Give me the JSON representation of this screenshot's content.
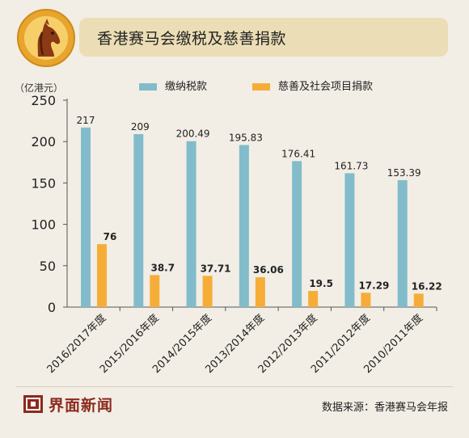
{
  "header": {
    "title": "香港赛马会缴税及慈善捐款",
    "badge_icon": "horse-head-icon"
  },
  "colors": {
    "background": "#f2eee6",
    "title_bar": "#ebddb5",
    "tax_series": "#82bccb",
    "donation_series": "#f6ad37",
    "brand": "#8b2a1c"
  },
  "chart_data": {
    "type": "bar",
    "unit_label": "（亿港元）",
    "categories": [
      "2016/2017年度",
      "2015/2016年度",
      "2014/2015年度",
      "2013/2014年度",
      "2012/2013年度",
      "2011/2012年度",
      "2010/2011年度"
    ],
    "series": [
      {
        "name": "缴纳税款",
        "values": [
          217,
          209,
          200.49,
          195.83,
          176.41,
          161.73,
          153.39
        ],
        "labels": [
          "217",
          "209",
          "200.49",
          "195.83",
          "176.41",
          "161.73",
          "153.39"
        ]
      },
      {
        "name": "慈善及社会项目捐款",
        "values": [
          76,
          38.7,
          37.71,
          36.06,
          19.5,
          17.29,
          16.22
        ],
        "labels": [
          "76",
          "38.7",
          "37.71",
          "36.06",
          "19.5",
          "17.29",
          "16.22"
        ]
      }
    ],
    "yticks": [
      "0",
      "50",
      "100",
      "150",
      "200",
      "250"
    ],
    "ylim": [
      0,
      250
    ],
    "legend_position": "top"
  },
  "footer": {
    "brand_name": "界面新闻",
    "brand_icon": "jiemian-logo-icon",
    "source": "数据来源：香港赛马会年报"
  }
}
